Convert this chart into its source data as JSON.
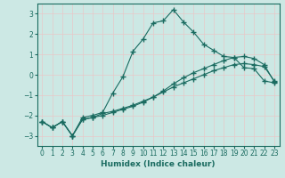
{
  "xlabel": "Humidex (Indice chaleur)",
  "background_color": "#cce8e4",
  "grid_color": "#e8c8c8",
  "line_color": "#1a6b60",
  "xlim": [
    -0.5,
    23.5
  ],
  "ylim": [
    -3.5,
    3.5
  ],
  "yticks": [
    -3,
    -2,
    -1,
    0,
    1,
    2,
    3
  ],
  "xticks": [
    0,
    1,
    2,
    3,
    4,
    5,
    6,
    7,
    8,
    9,
    10,
    11,
    12,
    13,
    14,
    15,
    16,
    17,
    18,
    19,
    20,
    21,
    22,
    23
  ],
  "line1_x": [
    0,
    1,
    2,
    3,
    4,
    5,
    6,
    7,
    8,
    9,
    10,
    11,
    12,
    13,
    14,
    15,
    16,
    17,
    18,
    19,
    20,
    21,
    22,
    23
  ],
  "line1_y": [
    -2.3,
    -2.6,
    -2.3,
    -3.0,
    -2.2,
    -2.1,
    -1.9,
    -1.8,
    -1.65,
    -1.5,
    -1.3,
    -1.1,
    -0.85,
    -0.6,
    -0.4,
    -0.2,
    0.0,
    0.2,
    0.35,
    0.5,
    0.55,
    0.5,
    0.4,
    -0.3
  ],
  "line2_x": [
    0,
    1,
    2,
    3,
    4,
    5,
    6,
    7,
    8,
    9,
    10,
    11,
    12,
    13,
    14,
    15,
    16,
    17,
    18,
    19,
    20,
    21,
    22,
    23
  ],
  "line2_y": [
    -2.3,
    -2.6,
    -2.3,
    -3.0,
    -2.1,
    -2.0,
    -1.85,
    -0.9,
    -0.1,
    1.15,
    1.75,
    2.55,
    2.65,
    3.2,
    2.6,
    2.1,
    1.5,
    1.2,
    0.9,
    0.85,
    0.35,
    0.3,
    -0.3,
    -0.4
  ],
  "line3_x": [
    0,
    1,
    2,
    3,
    4,
    5,
    6,
    7,
    8,
    9,
    10,
    11,
    12,
    13,
    14,
    15,
    16,
    17,
    18,
    19,
    20,
    21,
    22,
    23
  ],
  "line3_y": [
    -2.3,
    -2.6,
    -2.3,
    -3.0,
    -2.2,
    -2.1,
    -2.0,
    -1.85,
    -1.7,
    -1.55,
    -1.35,
    -1.1,
    -0.8,
    -0.45,
    -0.15,
    0.1,
    0.3,
    0.5,
    0.7,
    0.85,
    0.9,
    0.8,
    0.5,
    -0.35
  ]
}
